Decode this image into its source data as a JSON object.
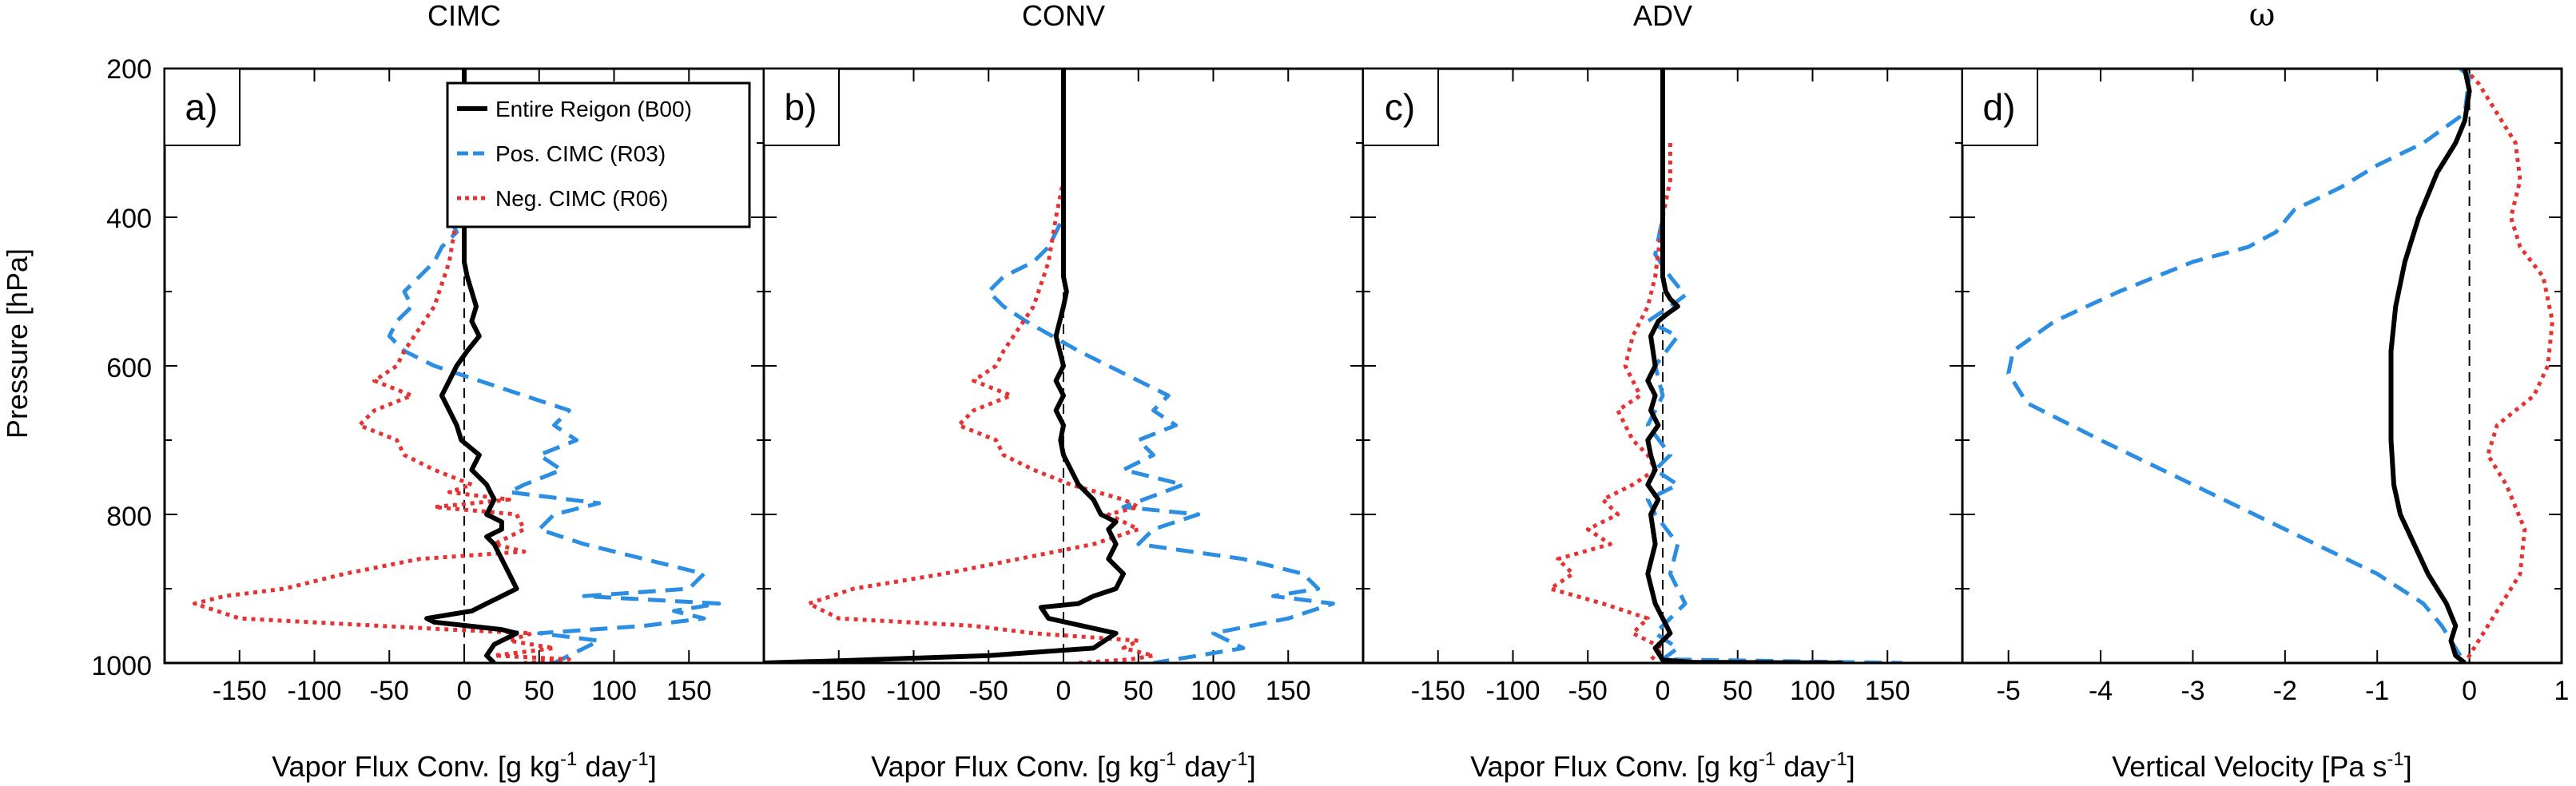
{
  "figure": {
    "ylabel": "Pressure [hPa]",
    "yticks": [
      "200",
      "400",
      "600",
      "800",
      "1000"
    ]
  },
  "colors": {
    "entire": "#000000",
    "pos": "#2b8ee3",
    "neg": "#e63232"
  },
  "legend": [
    "Entire Reigon (B00)",
    "Pos. CIMC (R03)",
    "Neg. CIMC (R06)"
  ],
  "chart_data": [
    {
      "type": "line",
      "panel_label": "a)",
      "title": "CIMC",
      "xlabel": {
        "main": "Vapor Flux Conv. [g kg",
        "sup1": "-1",
        "mid": " day",
        "sup2": "-1",
        "end": "]"
      },
      "xticks": [
        "-150",
        "-100",
        "-50",
        "0",
        "50",
        "100",
        "150"
      ],
      "xlim": [
        -200,
        200
      ],
      "ylim": [
        1000,
        200
      ],
      "series": [
        {
          "name": "Entire Reigon (B00)",
          "color": "#000000",
          "x": [
            0,
            0,
            0,
            0,
            0,
            0,
            0,
            2,
            5,
            8,
            5,
            10,
            2,
            -5,
            -10,
            -15,
            -10,
            -5,
            -2,
            10,
            5,
            15,
            20,
            15,
            25,
            25,
            15,
            20,
            25,
            30,
            35,
            25,
            15,
            5,
            -10,
            -25,
            -20,
            25,
            35,
            20,
            15,
            20
          ],
          "y": [
            200,
            250,
            300,
            350,
            400,
            420,
            460,
            480,
            500,
            520,
            540,
            560,
            580,
            600,
            620,
            640,
            660,
            680,
            700,
            720,
            740,
            760,
            780,
            800,
            810,
            820,
            830,
            840,
            860,
            880,
            900,
            910,
            920,
            930,
            935,
            940,
            945,
            955,
            960,
            975,
            990,
            1000
          ]
        },
        {
          "name": "Pos. CIMC (R03)",
          "color": "#2b8ee3",
          "x": [
            -5,
            -5,
            -10,
            -5,
            -15,
            -20,
            -30,
            -40,
            -35,
            -45,
            -50,
            -40,
            -20,
            10,
            40,
            70,
            60,
            75,
            50,
            65,
            40,
            30,
            90,
            60,
            50,
            80,
            120,
            160,
            150,
            80,
            170,
            140,
            160,
            120,
            50,
            90,
            60
          ],
          "y": [
            300,
            350,
            400,
            420,
            440,
            460,
            480,
            500,
            520,
            540,
            560,
            580,
            600,
            620,
            640,
            660,
            680,
            700,
            720,
            740,
            760,
            770,
            785,
            800,
            820,
            840,
            860,
            880,
            900,
            910,
            920,
            930,
            940,
            950,
            960,
            970,
            1000
          ]
        },
        {
          "name": "Neg. CIMC (R06)",
          "color": "#e63232",
          "x": [
            -5,
            -5,
            -5,
            -10,
            -20,
            -40,
            -45,
            -60,
            -35,
            -60,
            -70,
            -45,
            -40,
            -20,
            5,
            -10,
            30,
            -20,
            35,
            40,
            20,
            40,
            -30,
            -80,
            -120,
            -160,
            -180,
            -150,
            -10,
            45,
            30,
            60,
            20,
            70,
            40
          ],
          "y": [
            300,
            350,
            400,
            460,
            520,
            580,
            600,
            620,
            640,
            660,
            680,
            700,
            720,
            740,
            760,
            770,
            780,
            790,
            800,
            820,
            840,
            850,
            860,
            880,
            900,
            910,
            920,
            940,
            955,
            960,
            970,
            980,
            990,
            995,
            1000
          ]
        }
      ]
    },
    {
      "type": "line",
      "panel_label": "b)",
      "title": "CONV",
      "xlabel": {
        "main": "Vapor Flux Conv. [g kg",
        "sup1": "-1",
        "mid": " day",
        "sup2": "-1",
        "end": "]"
      },
      "xticks": [
        "-150",
        "-100",
        "-50",
        "0",
        "50",
        "100",
        "150"
      ],
      "xlim": [
        -200,
        200
      ],
      "ylim": [
        1000,
        200
      ],
      "series": [
        {
          "name": "Entire Reigon (B00)",
          "color": "#000000",
          "x": [
            0,
            0,
            0,
            0,
            0,
            0,
            0,
            2,
            0,
            -5,
            0,
            -5,
            0,
            -5,
            0,
            -2,
            0,
            5,
            10,
            20,
            25,
            35,
            30,
            35,
            30,
            40,
            35,
            20,
            10,
            -15,
            -10,
            35,
            20,
            -50,
            -150,
            -200
          ],
          "y": [
            200,
            250,
            300,
            350,
            400,
            450,
            480,
            500,
            520,
            560,
            600,
            620,
            640,
            660,
            680,
            700,
            720,
            740,
            760,
            780,
            800,
            810,
            820,
            840,
            860,
            880,
            900,
            910,
            920,
            925,
            940,
            960,
            980,
            990,
            997,
            1000
          ]
        },
        {
          "name": "Pos. CIMC (R03)",
          "color": "#2b8ee3",
          "x": [
            0,
            0,
            0,
            -5,
            -10,
            -20,
            -40,
            -50,
            -40,
            -25,
            10,
            50,
            70,
            60,
            75,
            50,
            60,
            40,
            80,
            60,
            40,
            90,
            60,
            50,
            120,
            160,
            170,
            140,
            180,
            150,
            100,
            120,
            60
          ],
          "y": [
            300,
            350,
            400,
            420,
            440,
            460,
            480,
            500,
            520,
            540,
            580,
            620,
            640,
            660,
            680,
            700,
            720,
            740,
            760,
            775,
            790,
            800,
            820,
            840,
            860,
            880,
            900,
            910,
            920,
            940,
            960,
            980,
            1000
          ]
        },
        {
          "name": "Neg. CIMC (R06)",
          "color": "#e63232",
          "x": [
            0,
            0,
            -5,
            -10,
            -20,
            -40,
            -45,
            -60,
            -35,
            -60,
            -70,
            -45,
            -40,
            -20,
            5,
            40,
            50,
            30,
            50,
            20,
            -30,
            -80,
            -140,
            -170,
            -150,
            -60,
            -20,
            50,
            40,
            60,
            45,
            10
          ],
          "y": [
            300,
            350,
            400,
            460,
            520,
            580,
            600,
            620,
            640,
            660,
            680,
            700,
            720,
            740,
            760,
            780,
            790,
            800,
            820,
            840,
            860,
            880,
            900,
            920,
            940,
            950,
            960,
            970,
            980,
            990,
            995,
            1000
          ]
        }
      ]
    },
    {
      "type": "line",
      "panel_label": "c)",
      "title": "ADV",
      "xlabel": {
        "main": "Vapor Flux Conv. [g kg",
        "sup1": "-1",
        "mid": " day",
        "sup2": "-1",
        "end": "]"
      },
      "xticks": [
        "-150",
        "-100",
        "-50",
        "0",
        "50",
        "100",
        "150"
      ],
      "xlim": [
        -200,
        200
      ],
      "ylim": [
        1000,
        200
      ],
      "series": [
        {
          "name": "Entire Reigon (B00)",
          "color": "#000000",
          "x": [
            0,
            0,
            0,
            0,
            0,
            0,
            0,
            2,
            5,
            10,
            3,
            -3,
            -8,
            -5,
            -10,
            -5,
            -8,
            -3,
            -10,
            -8,
            -5,
            -10,
            -3,
            -8,
            -5,
            -10,
            -5,
            0,
            5,
            -5,
            0,
            20,
            120
          ],
          "y": [
            200,
            250,
            300,
            350,
            400,
            450,
            480,
            500,
            510,
            520,
            530,
            540,
            560,
            600,
            620,
            640,
            660,
            680,
            700,
            720,
            740,
            760,
            780,
            800,
            840,
            880,
            920,
            940,
            960,
            980,
            996,
            999,
            1000
          ]
        },
        {
          "name": "Pos. CIMC (R03)",
          "color": "#2b8ee3",
          "x": [
            0,
            0,
            0,
            -5,
            5,
            15,
            5,
            -10,
            10,
            -5,
            0,
            -10,
            5,
            -5,
            10,
            -10,
            -5,
            10,
            5,
            15,
            -5,
            10,
            0,
            160
          ],
          "y": [
            300,
            350,
            400,
            450,
            480,
            505,
            520,
            540,
            560,
            600,
            640,
            680,
            720,
            740,
            760,
            780,
            800,
            840,
            880,
            920,
            960,
            980,
            995,
            1000
          ]
        },
        {
          "name": "Neg. CIMC (R06)",
          "color": "#e63232",
          "x": [
            5,
            5,
            0,
            -5,
            -10,
            -20,
            -25,
            -15,
            -30,
            -25,
            -20,
            -10,
            -5,
            -20,
            -40,
            -30,
            -50,
            -35,
            -70,
            -60,
            -75,
            -40,
            -10,
            -20,
            0,
            -10
          ],
          "y": [
            300,
            350,
            400,
            480,
            520,
            560,
            600,
            640,
            660,
            680,
            700,
            720,
            740,
            760,
            780,
            800,
            820,
            840,
            860,
            880,
            900,
            920,
            940,
            960,
            980,
            1000
          ]
        }
      ]
    },
    {
      "type": "line",
      "panel_label": "d)",
      "title": "ω",
      "xlabel": {
        "main": "Vertical Velocity [Pa s",
        "sup1": "-1",
        "mid": "",
        "sup2": "",
        "end": "]"
      },
      "xticks": [
        "-5",
        "-4",
        "-3",
        "-2",
        "-1",
        "0",
        "1"
      ],
      "xlim": [
        -5.5,
        1.0
      ],
      "ylim": [
        1000,
        200
      ],
      "series": [
        {
          "name": "Entire Reigon (B00)",
          "color": "#000000",
          "x": [
            -0.05,
            0.0,
            -0.05,
            -0.15,
            -0.35,
            -0.55,
            -0.7,
            -0.8,
            -0.85,
            -0.85,
            -0.85,
            -0.82,
            -0.75,
            -0.6,
            -0.45,
            -0.25,
            -0.15,
            -0.2,
            -0.15,
            -0.05
          ],
          "y": [
            200,
            230,
            270,
            300,
            340,
            400,
            460,
            520,
            580,
            640,
            700,
            760,
            800,
            840,
            880,
            920,
            950,
            970,
            990,
            1000
          ]
        },
        {
          "name": "Pos. CIMC (R03)",
          "color": "#2b8ee3",
          "x": [
            -0.1,
            0.0,
            -0.05,
            -0.5,
            -1.0,
            -1.4,
            -1.9,
            -2.1,
            -2.4,
            -3.0,
            -3.8,
            -4.5,
            -4.95,
            -5.0,
            -4.8,
            -4.0,
            -3.0,
            -2.0,
            -1.0,
            -0.5,
            -0.3,
            -0.2,
            -0.05
          ],
          "y": [
            200,
            210,
            260,
            300,
            330,
            360,
            390,
            420,
            440,
            460,
            500,
            540,
            580,
            610,
            650,
            700,
            760,
            820,
            880,
            920,
            950,
            970,
            1000
          ]
        },
        {
          "name": "Neg. CIMC (R06)",
          "color": "#e63232",
          "x": [
            -0.05,
            0.1,
            0.3,
            0.5,
            0.55,
            0.45,
            0.55,
            0.8,
            0.9,
            0.85,
            0.7,
            0.3,
            0.2,
            0.4,
            0.6,
            0.55,
            0.35,
            0.15,
            0.0,
            -0.05
          ],
          "y": [
            200,
            220,
            260,
            300,
            350,
            400,
            440,
            480,
            540,
            600,
            640,
            680,
            720,
            760,
            820,
            880,
            920,
            960,
            990,
            1000
          ]
        }
      ]
    }
  ]
}
